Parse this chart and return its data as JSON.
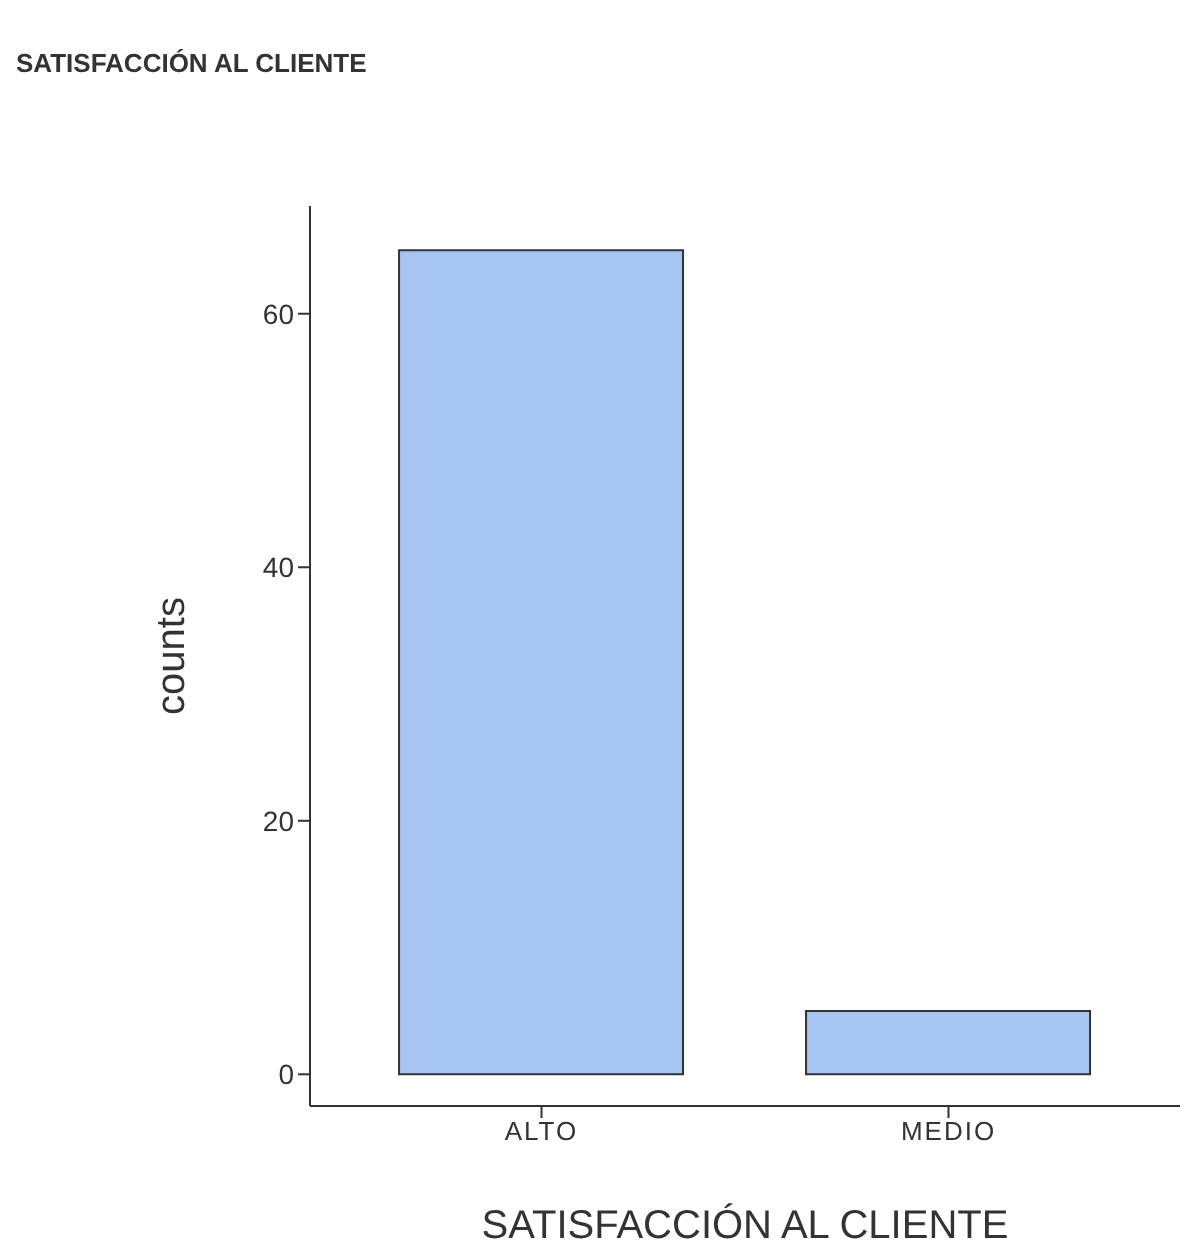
{
  "chart_data": {
    "type": "bar",
    "title": "SATISFACCIÓN AL CLIENTE",
    "xlabel": "SATISFACCIÓN AL CLIENTE",
    "ylabel": "counts",
    "categories": [
      "ALTO",
      "MEDIO"
    ],
    "values": [
      65,
      5
    ],
    "color": "#a6c4f0",
    "ylim": [
      -2.5,
      68.5
    ],
    "yticks": [
      0,
      20,
      40,
      60
    ],
    "grid": false,
    "legend": false
  }
}
